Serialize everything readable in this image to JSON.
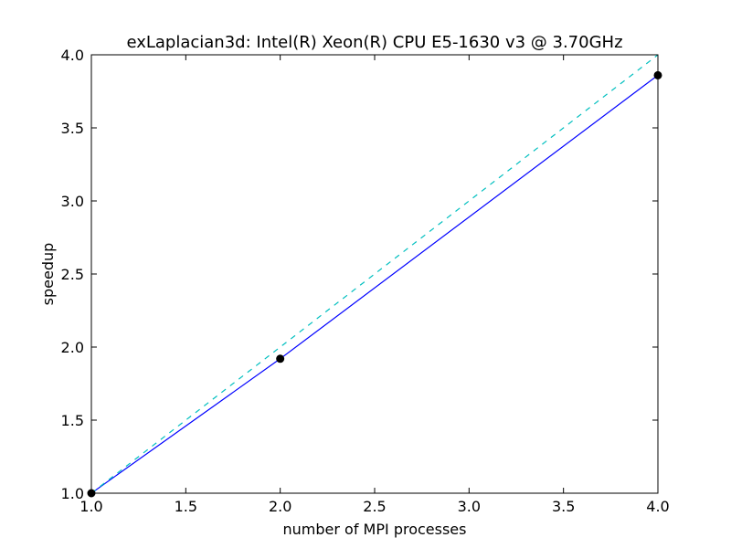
{
  "chart_data": {
    "type": "line",
    "title": "exLaplacian3d: Intel(R) Xeon(R) CPU E5-1630 v3 @ 3.70GHz",
    "xlabel": "number of MPI processes",
    "ylabel": "speedup",
    "xlim": [
      1.0,
      4.0
    ],
    "ylim": [
      1.0,
      4.0
    ],
    "xticks": [
      "1.0",
      "1.5",
      "2.0",
      "2.5",
      "3.0",
      "3.5",
      "4.0"
    ],
    "yticks": [
      "1.0",
      "1.5",
      "2.0",
      "2.5",
      "3.0",
      "3.5",
      "4.0"
    ],
    "grid": false,
    "series": [
      {
        "x": [
          1,
          2,
          4
        ],
        "y": [
          1.0,
          1.92,
          3.86
        ],
        "color": "#0000ff",
        "line_style": "solid",
        "marker": "circle",
        "marker_color": "#000000"
      },
      {
        "x": [
          1,
          4
        ],
        "y": [
          1.0,
          4.0
        ],
        "color": "#00bfbf",
        "line_style": "dashed"
      }
    ]
  }
}
